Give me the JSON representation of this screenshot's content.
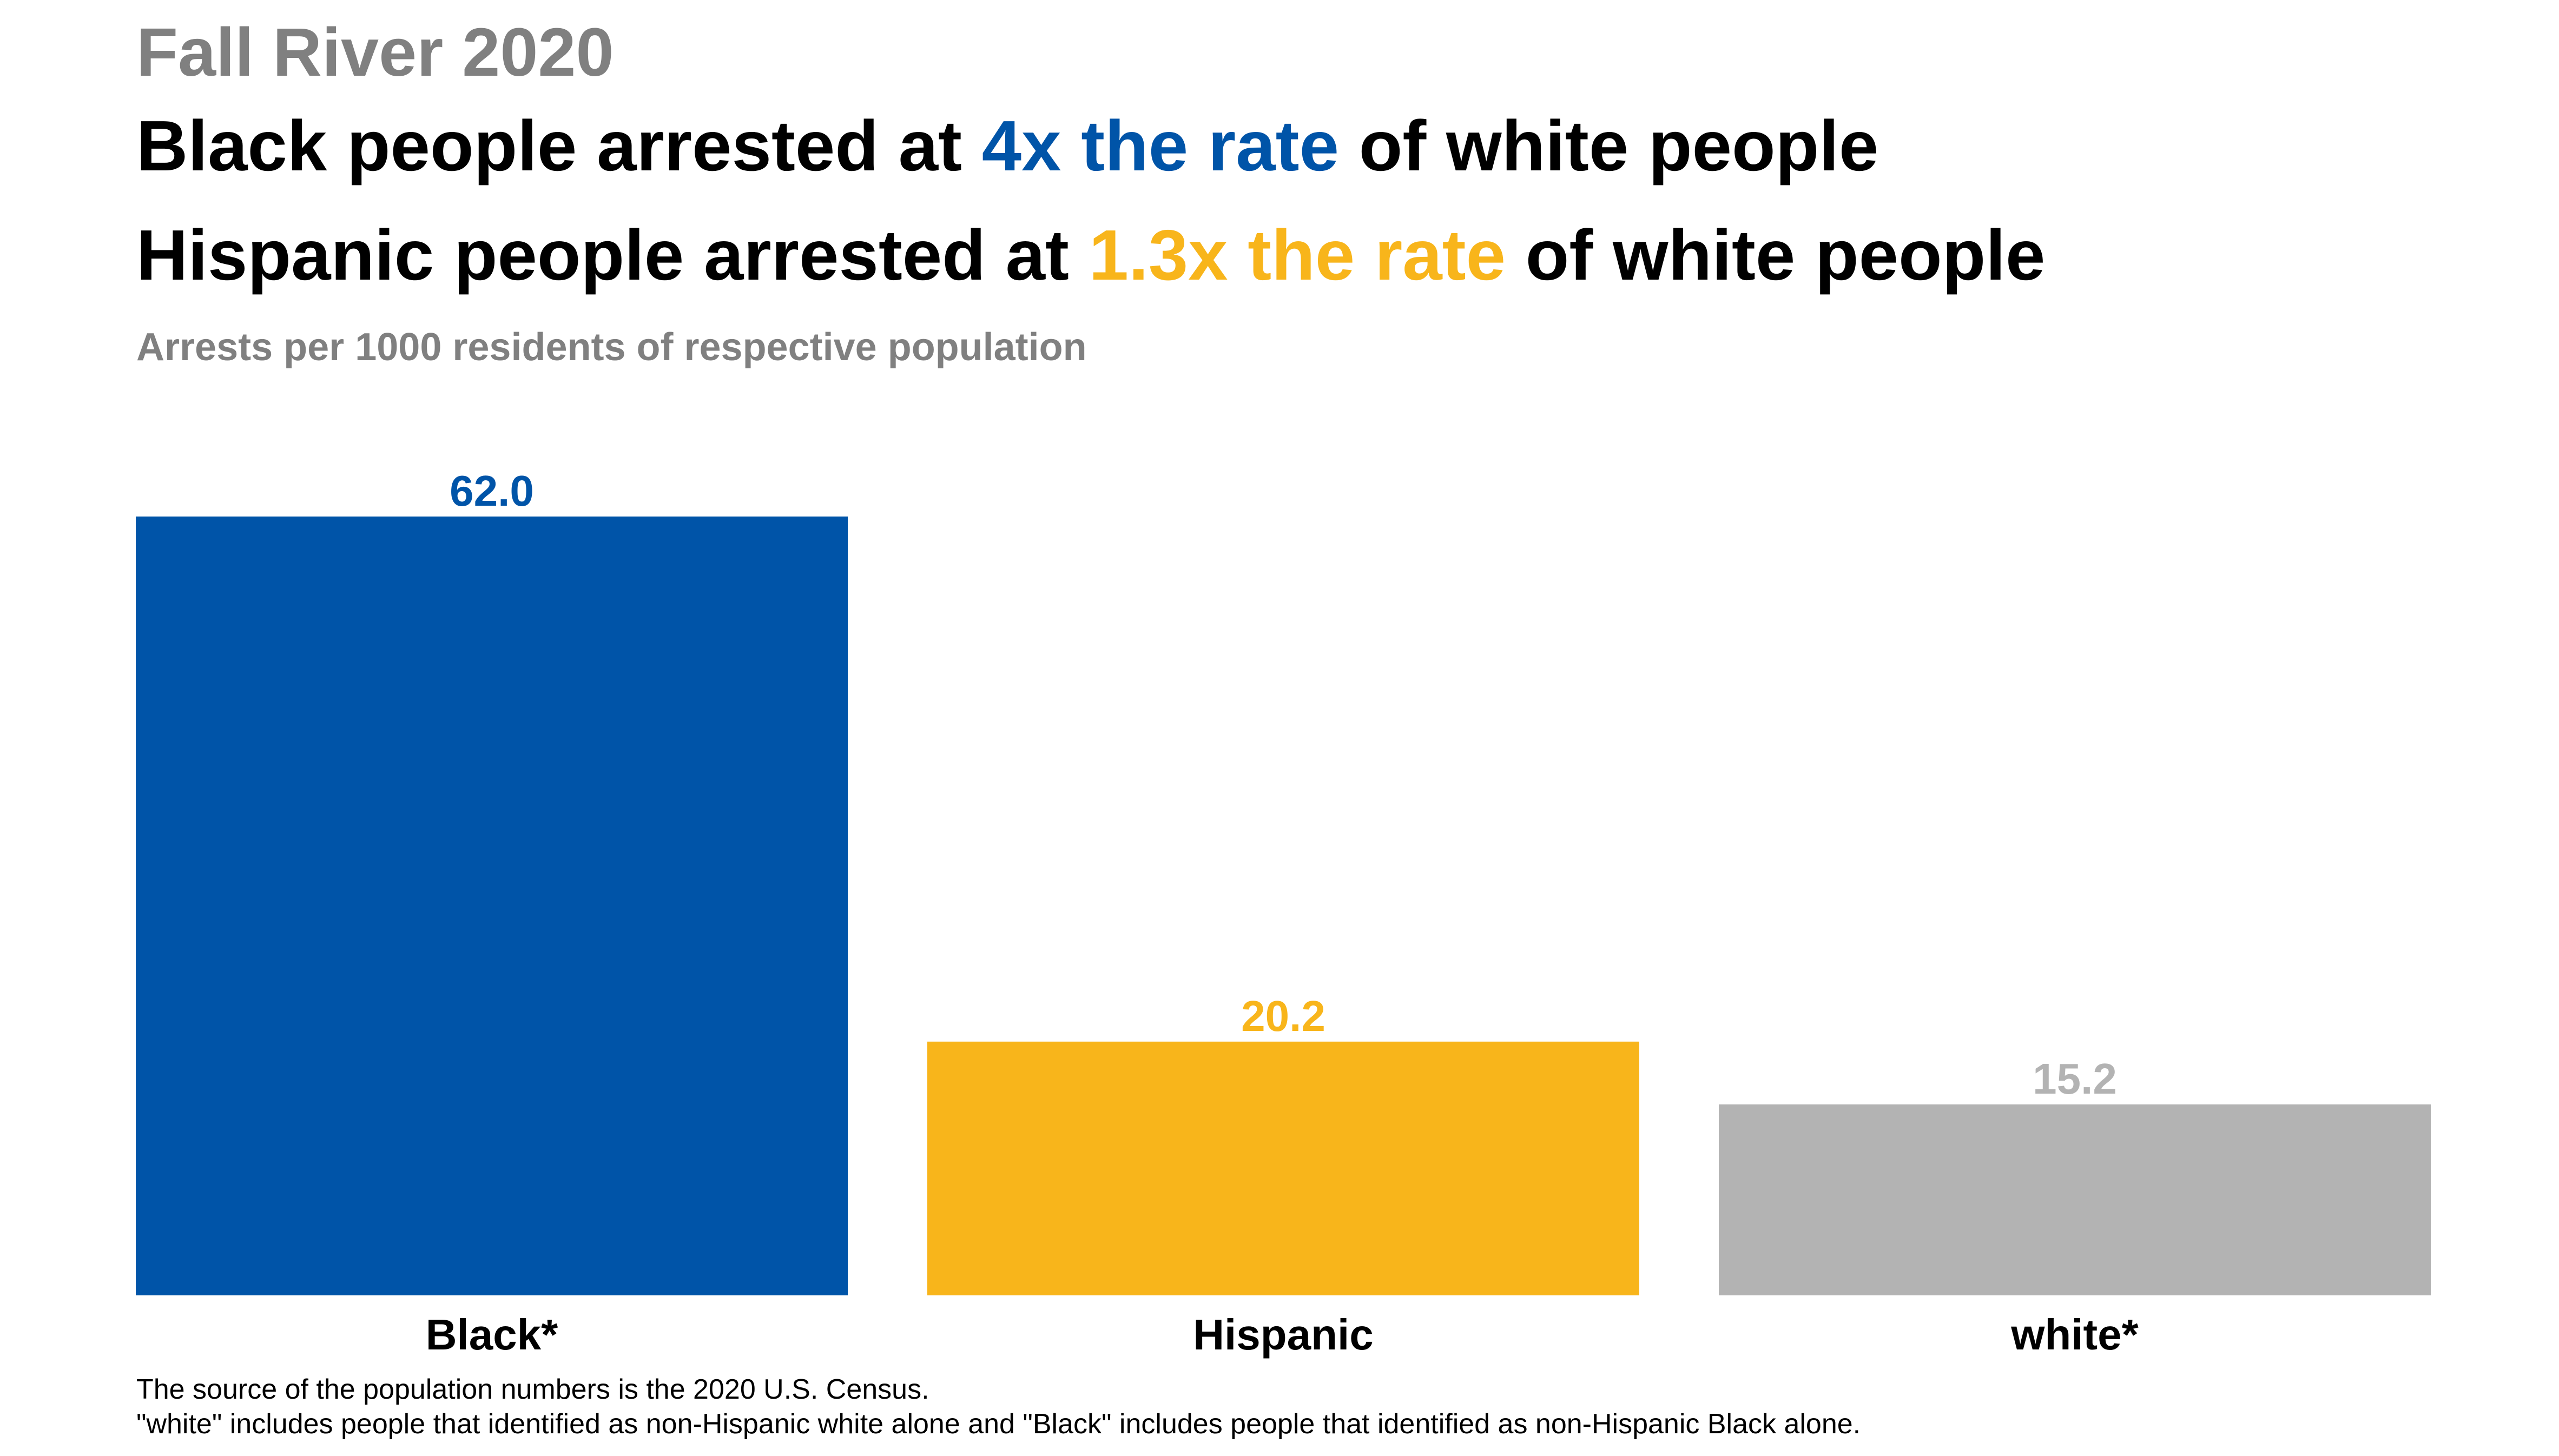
{
  "header": {
    "kicker": "Fall River 2020",
    "line1": {
      "pre": "Black people arrested at ",
      "highlight": "4x the rate",
      "post": " of white people"
    },
    "line2": {
      "pre": "Hispanic people arrested at ",
      "highlight": "1.3x the rate",
      "post": " of white people"
    },
    "subtitle": "Arrests per 1000 residents of respective population"
  },
  "colors": {
    "black_bar": "#0054a8",
    "hispanic_bar": "#f8b51b",
    "white_bar": "#b3b3b3",
    "white_label": "#b3b3b3",
    "kicker": "#808080",
    "text": "#000000"
  },
  "chart_data": {
    "type": "bar",
    "title": "Fall River 2020",
    "subtitle": "Arrests per 1000 residents of respective population",
    "categories": [
      "Black*",
      "Hispanic",
      "white*"
    ],
    "values": [
      62.0,
      20.2,
      15.2
    ],
    "value_labels": [
      "62.0",
      "20.2",
      "15.2"
    ],
    "xlabel": "",
    "ylabel": "",
    "ylim": [
      0,
      62.0
    ],
    "grid": false,
    "legend": "none"
  },
  "footnotes": {
    "source": "The source of the population numbers is the 2020 U.S. Census.",
    "definition": "\"white\" includes people that identified as non-Hispanic white alone and \"Black\" includes people that identified as non-Hispanic Black alone."
  }
}
